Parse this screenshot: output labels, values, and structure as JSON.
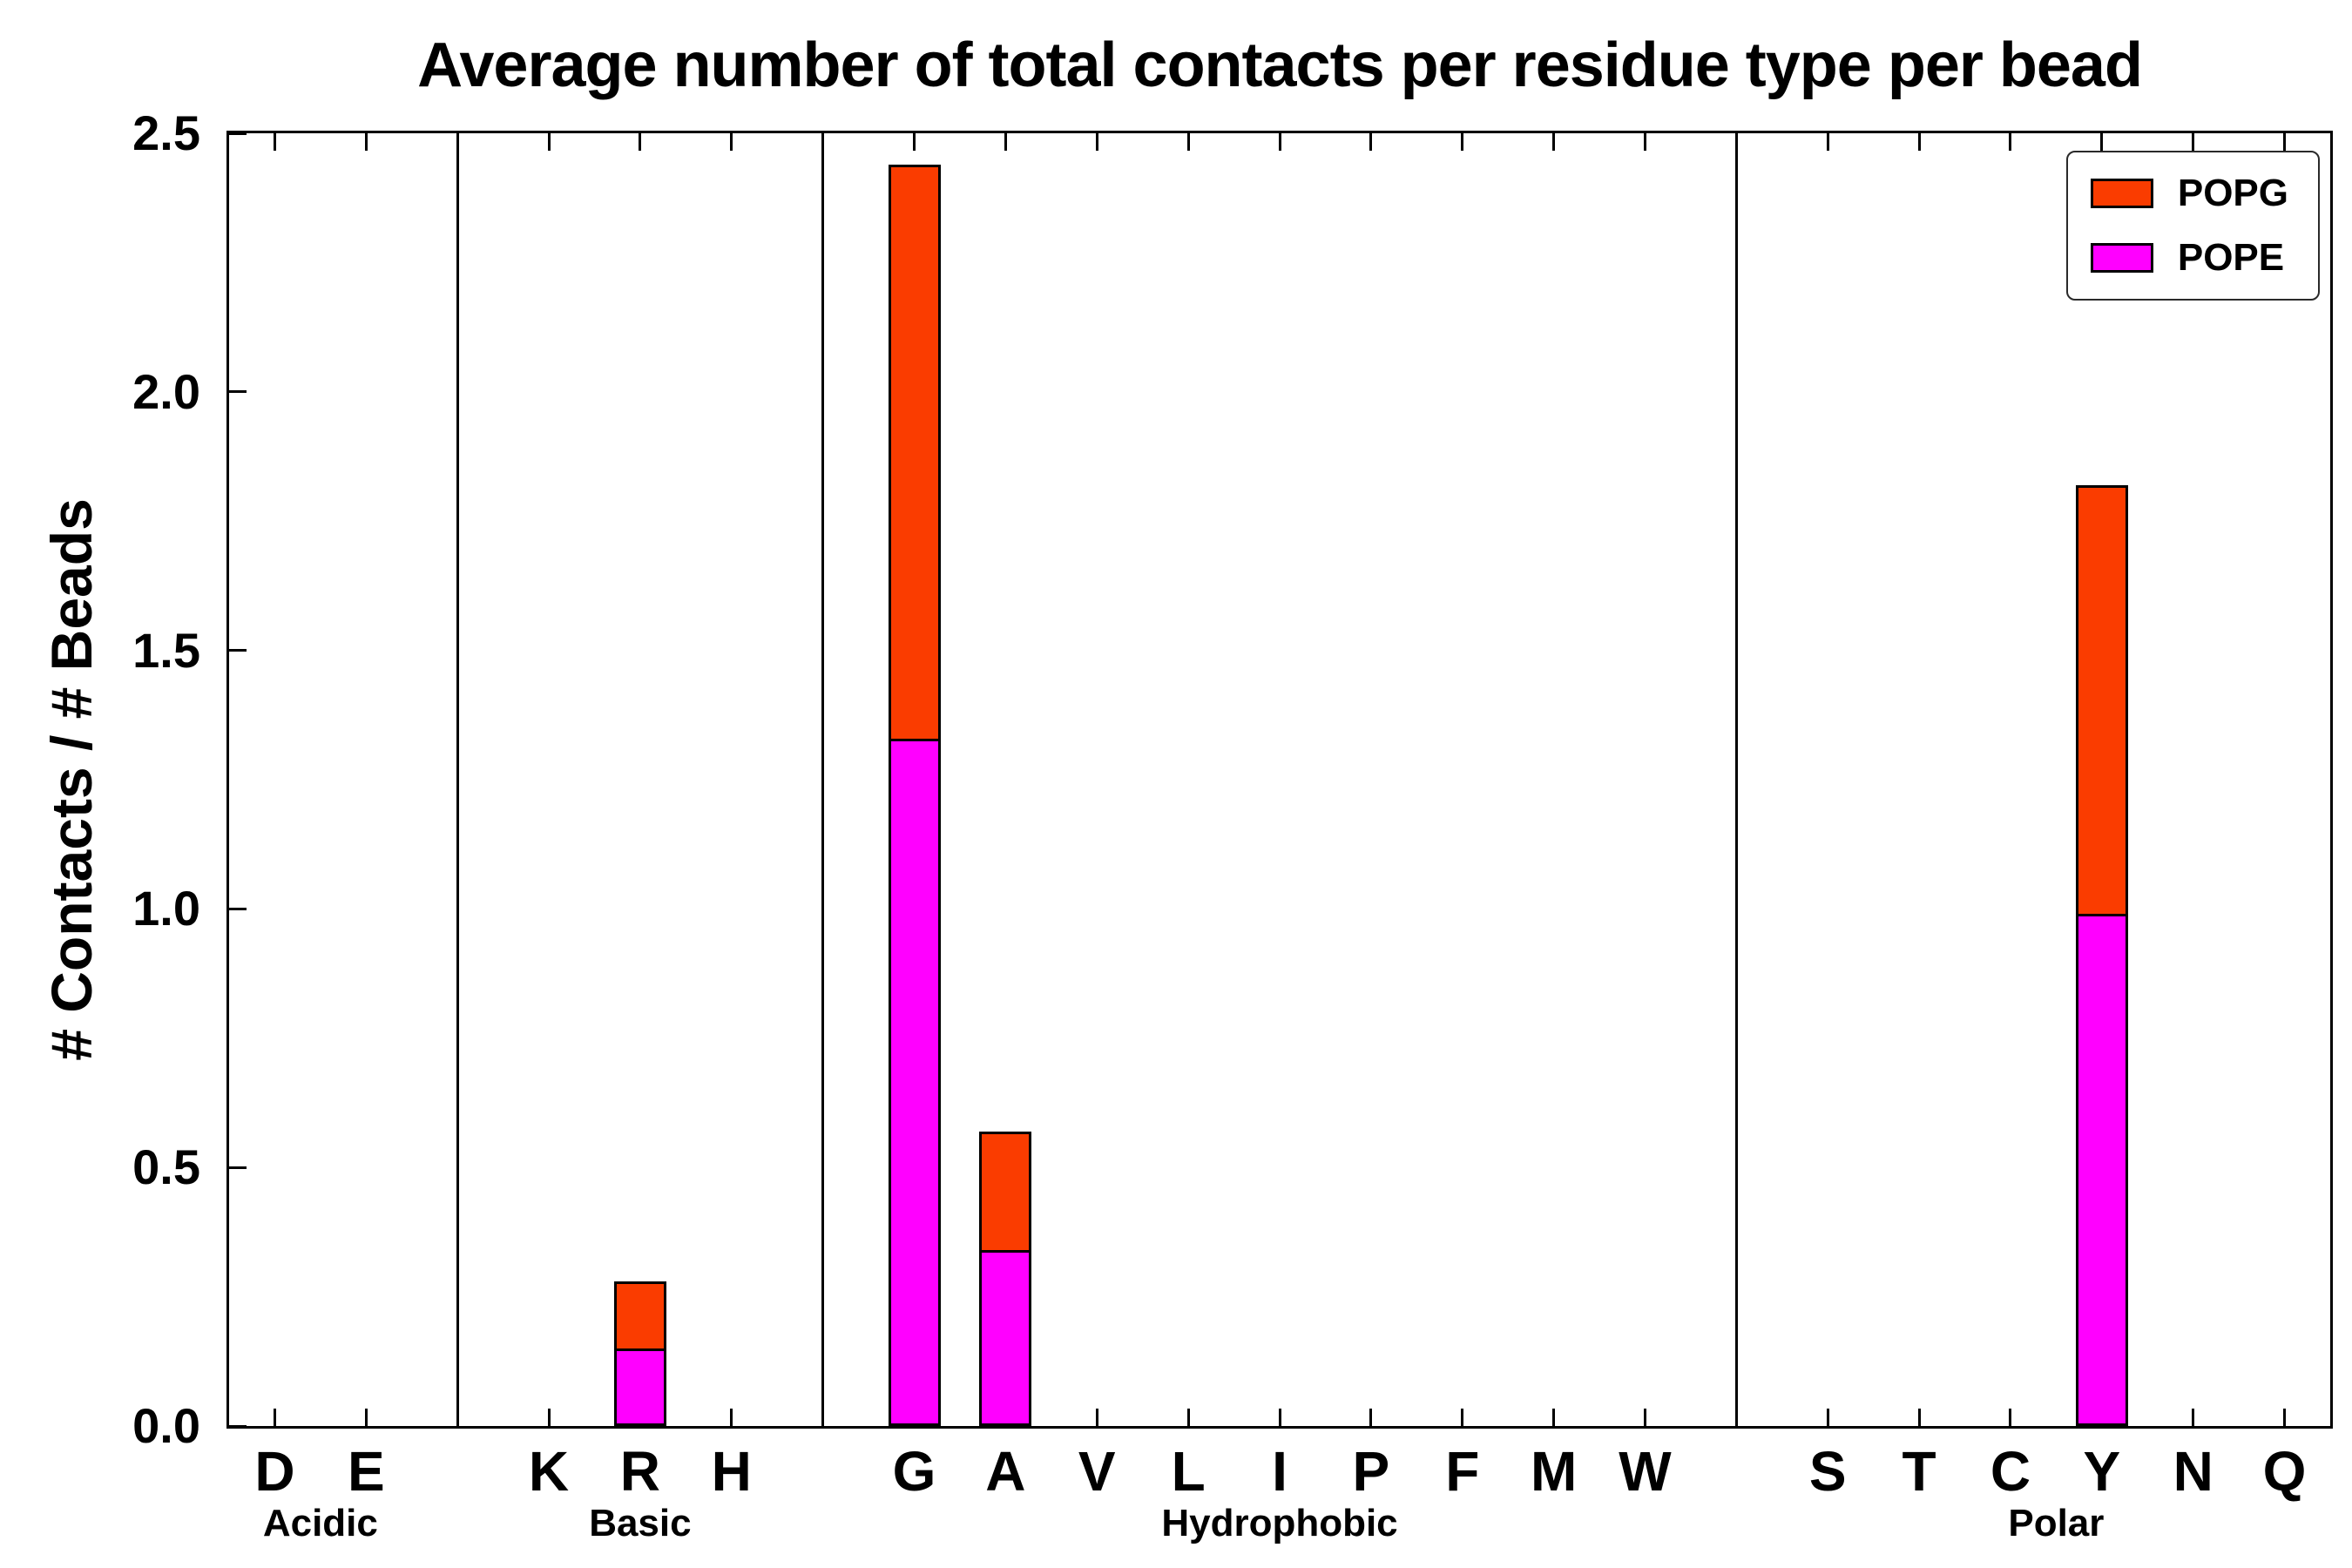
{
  "chart_data": {
    "type": "bar",
    "stacked": true,
    "title": "Average number of total contacts per residue type per bead",
    "ylabel": "# Contacts / # Beads",
    "xlabel": "",
    "ylim": [
      0,
      2.5
    ],
    "yticks": [
      0,
      0.5,
      1.0,
      1.5,
      2.0,
      2.5
    ],
    "ytick_labels": [
      "0.0",
      "0.5",
      "1.0",
      "1.5",
      "2.0",
      "2.5"
    ],
    "grid": false,
    "legend_position": "upper right",
    "groups": [
      {
        "label": "Acidic",
        "categories": [
          "D",
          "E"
        ]
      },
      {
        "label": "Basic",
        "categories": [
          "K",
          "R",
          "H"
        ]
      },
      {
        "label": "Hydrophobic",
        "categories": [
          "G",
          "A",
          "V",
          "L",
          "I",
          "P",
          "F",
          "M",
          "W"
        ]
      },
      {
        "label": "Polar",
        "categories": [
          "S",
          "T",
          "C",
          "Y",
          "N",
          "Q"
        ]
      }
    ],
    "categories": [
      "D",
      "E",
      "K",
      "R",
      "H",
      "G",
      "A",
      "V",
      "L",
      "I",
      "P",
      "F",
      "M",
      "W",
      "S",
      "T",
      "C",
      "Y",
      "N",
      "Q"
    ],
    "series": [
      {
        "name": "POPE",
        "color": "#FF00FF",
        "values": [
          0,
          0,
          0,
          0.15,
          0,
          1.33,
          0.34,
          0,
          0,
          0,
          0,
          0,
          0,
          0,
          0,
          0,
          0,
          0.99,
          0,
          0
        ]
      },
      {
        "name": "POPG",
        "color": "#FA3C00",
        "values": [
          0,
          0,
          0,
          0.13,
          0,
          1.11,
          0.23,
          0,
          0,
          0,
          0,
          0,
          0,
          0,
          0,
          0,
          0,
          0.83,
          0,
          0
        ]
      }
    ],
    "stacked_totals": {
      "R": 0.28,
      "G": 2.44,
      "A": 0.57,
      "Y": 1.82
    }
  }
}
